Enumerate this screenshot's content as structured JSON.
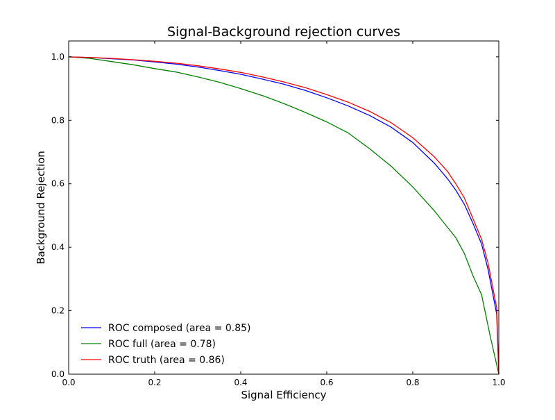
{
  "chart_data": {
    "type": "line",
    "title": "Signal-Background rejection curves",
    "xlabel": "Signal Efficiency",
    "ylabel": "Background Rejection",
    "xlim": [
      0.0,
      1.0
    ],
    "ylim": [
      0.0,
      1.05
    ],
    "grid": false,
    "legend_position": "lower-left",
    "x_ticks": [
      0.0,
      0.2,
      0.4,
      0.6,
      0.8,
      1.0
    ],
    "y_ticks": [
      0.0,
      0.2,
      0.4,
      0.6,
      0.8,
      1.0
    ],
    "x_tick_labels": [
      "0.0",
      "0.2",
      "0.4",
      "0.6",
      "0.8",
      "1.0"
    ],
    "y_tick_labels": [
      "0.0",
      "0.2",
      "0.4",
      "0.6",
      "0.8",
      "1.0"
    ],
    "series": [
      {
        "name": "ROC composed (area = 0.85)",
        "color": "#0000ff",
        "points": [
          [
            0.0,
            1.0
          ],
          [
            0.05,
            0.998
          ],
          [
            0.1,
            0.994
          ],
          [
            0.15,
            0.99
          ],
          [
            0.2,
            0.984
          ],
          [
            0.25,
            0.977
          ],
          [
            0.3,
            0.968
          ],
          [
            0.35,
            0.957
          ],
          [
            0.4,
            0.945
          ],
          [
            0.45,
            0.93
          ],
          [
            0.5,
            0.914
          ],
          [
            0.55,
            0.894
          ],
          [
            0.6,
            0.871
          ],
          [
            0.65,
            0.845
          ],
          [
            0.7,
            0.815
          ],
          [
            0.75,
            0.778
          ],
          [
            0.8,
            0.73
          ],
          [
            0.85,
            0.665
          ],
          [
            0.88,
            0.617
          ],
          [
            0.9,
            0.58
          ],
          [
            0.92,
            0.535
          ],
          [
            0.94,
            0.475
          ],
          [
            0.96,
            0.41
          ],
          [
            0.975,
            0.33
          ],
          [
            0.985,
            0.26
          ],
          [
            0.995,
            0.19
          ],
          [
            1.0,
            0.0
          ]
        ]
      },
      {
        "name": "ROC full (area = 0.78)",
        "color": "#008000",
        "points": [
          [
            0.0,
            1.0
          ],
          [
            0.05,
            0.995
          ],
          [
            0.1,
            0.985
          ],
          [
            0.15,
            0.975
          ],
          [
            0.2,
            0.963
          ],
          [
            0.25,
            0.952
          ],
          [
            0.3,
            0.937
          ],
          [
            0.35,
            0.92
          ],
          [
            0.4,
            0.9
          ],
          [
            0.45,
            0.878
          ],
          [
            0.5,
            0.853
          ],
          [
            0.55,
            0.825
          ],
          [
            0.6,
            0.795
          ],
          [
            0.65,
            0.76
          ],
          [
            0.7,
            0.71
          ],
          [
            0.75,
            0.655
          ],
          [
            0.8,
            0.59
          ],
          [
            0.85,
            0.515
          ],
          [
            0.9,
            0.43
          ],
          [
            0.92,
            0.38
          ],
          [
            0.94,
            0.31
          ],
          [
            0.96,
            0.25
          ],
          [
            0.98,
            0.12
          ],
          [
            1.0,
            0.0
          ]
        ]
      },
      {
        "name": "ROC truth (area = 0.86)",
        "color": "#ff0000",
        "points": [
          [
            0.0,
            1.0
          ],
          [
            0.05,
            0.998
          ],
          [
            0.1,
            0.995
          ],
          [
            0.15,
            0.991
          ],
          [
            0.2,
            0.986
          ],
          [
            0.25,
            0.98
          ],
          [
            0.3,
            0.972
          ],
          [
            0.35,
            0.962
          ],
          [
            0.4,
            0.951
          ],
          [
            0.45,
            0.937
          ],
          [
            0.5,
            0.921
          ],
          [
            0.55,
            0.903
          ],
          [
            0.6,
            0.881
          ],
          [
            0.65,
            0.857
          ],
          [
            0.7,
            0.828
          ],
          [
            0.75,
            0.792
          ],
          [
            0.8,
            0.745
          ],
          [
            0.85,
            0.685
          ],
          [
            0.88,
            0.64
          ],
          [
            0.9,
            0.6
          ],
          [
            0.92,
            0.555
          ],
          [
            0.94,
            0.49
          ],
          [
            0.96,
            0.425
          ],
          [
            0.975,
            0.35
          ],
          [
            0.985,
            0.28
          ],
          [
            0.995,
            0.21
          ],
          [
            1.0,
            0.0
          ]
        ]
      }
    ]
  }
}
